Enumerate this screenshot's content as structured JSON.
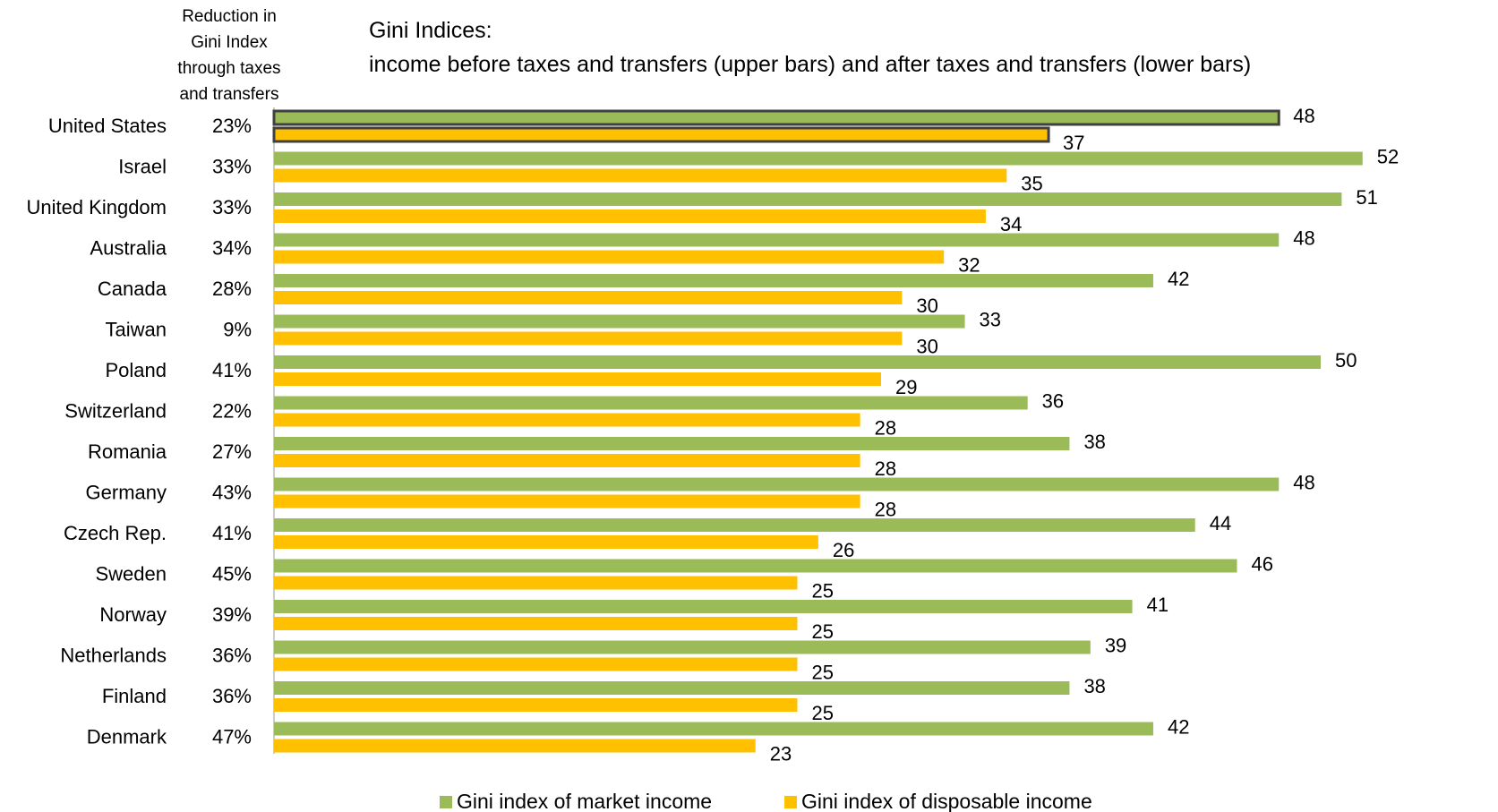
{
  "header": {
    "reduction_lines": [
      "Reduction in",
      "Gini Index",
      "through taxes",
      "and transfers"
    ]
  },
  "chart_data": {
    "type": "bar",
    "orientation": "horizontal",
    "title_lines": [
      "Gini Indices:",
      "income before taxes and transfers (upper bars) and after taxes and transfers (lower bars)"
    ],
    "categories": [
      "United States",
      "Israel",
      "United Kingdom",
      "Australia",
      "Canada",
      "Taiwan",
      "Poland",
      "Switzerland",
      "Romania",
      "Germany",
      "Czech Rep.",
      "Sweden",
      "Norway",
      "Netherlands",
      "Finland",
      "Denmark"
    ],
    "reduction_pct": [
      "23%",
      "33%",
      "33%",
      "34%",
      "28%",
      "9%",
      "41%",
      "22%",
      "27%",
      "43%",
      "41%",
      "45%",
      "39%",
      "36%",
      "36%",
      "47%"
    ],
    "series": [
      {
        "name": "Gini index of market income",
        "color": "#9bbb59",
        "values": [
          48,
          52,
          51,
          48,
          42,
          33,
          50,
          36,
          38,
          48,
          44,
          46,
          41,
          39,
          38,
          42
        ]
      },
      {
        "name": "Gini index of disposable income",
        "color": "#ffc000",
        "values": [
          37,
          35,
          34,
          32,
          30,
          30,
          29,
          28,
          28,
          28,
          26,
          25,
          25,
          25,
          25,
          23
        ]
      }
    ],
    "highlighted_category": "United States",
    "highlight_border_color": "#404040",
    "legend_position": "bottom",
    "grid": false,
    "xlim": [
      0,
      55
    ]
  }
}
